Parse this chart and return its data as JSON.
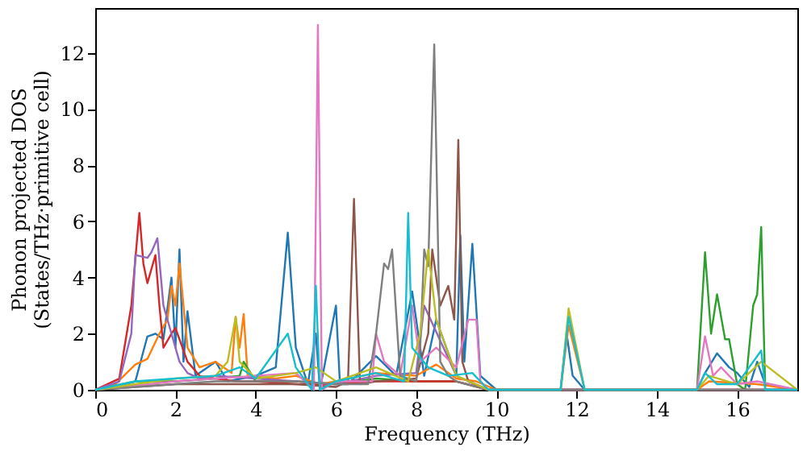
{
  "chart_data": {
    "type": "line",
    "xlabel": "Frequency (THz)",
    "ylabel": "Phonon projected DOS\n(States/THz·primitive cell)",
    "xlim": [
      0,
      17.5
    ],
    "ylim": [
      0,
      13.6
    ],
    "xticks": [
      0,
      2,
      4,
      6,
      8,
      10,
      12,
      14,
      16
    ],
    "yticks": [
      0,
      2,
      4,
      6,
      8,
      10,
      12
    ],
    "grid": false,
    "legend": false,
    "series": [
      {
        "color": "#1f77b4",
        "x": [
          0,
          0.5,
          1.0,
          1.3,
          1.5,
          1.7,
          1.9,
          2.0,
          2.1,
          2.2,
          2.3,
          2.5,
          3.0,
          3.3,
          4.0,
          4.5,
          4.8,
          5.0,
          5.3,
          5.5,
          5.6,
          6.0,
          6.1,
          6.3,
          7.0,
          7.5,
          7.9,
          8.2,
          8.5,
          9.0,
          9.1,
          9.2,
          9.4,
          9.6,
          10.0,
          11.6,
          11.75,
          11.9,
          12.2,
          15.0,
          15.2,
          15.5,
          15.8,
          16.0,
          16.3,
          16.5,
          16.7,
          17.5
        ],
        "values": [
          0,
          0.1,
          0.3,
          1.9,
          2.0,
          1.8,
          4.0,
          1.5,
          5.0,
          1.0,
          2.8,
          0.5,
          1.0,
          0.3,
          0.5,
          0.8,
          5.6,
          1.5,
          0.2,
          2.0,
          0.0,
          3.0,
          0.2,
          0.2,
          1.2,
          0.5,
          3.5,
          0.5,
          2.5,
          0.5,
          5.5,
          1.0,
          5.2,
          0.5,
          0,
          0,
          2.0,
          0.5,
          0,
          0,
          0.6,
          1.3,
          0.8,
          0.6,
          0.1,
          1.0,
          0.2,
          0
        ]
      },
      {
        "color": "#ff7f0e",
        "x": [
          0,
          0.5,
          1.0,
          1.3,
          1.6,
          1.8,
          1.9,
          2.0,
          2.1,
          2.3,
          2.6,
          3.0,
          3.4,
          3.5,
          3.6,
          3.7,
          3.8,
          4.5,
          5.0,
          5.6,
          6.0,
          7.0,
          8.0,
          8.5,
          9.0,
          9.5,
          10.0,
          11.6,
          11.8,
          12.2,
          15.0,
          15.3,
          16.5,
          17.5
        ],
        "values": [
          0,
          0.2,
          0.9,
          1.1,
          2.0,
          2.5,
          3.7,
          3.0,
          4.5,
          1.5,
          0.8,
          1.0,
          0.6,
          2.6,
          1.5,
          2.7,
          0.5,
          0.4,
          0.5,
          0.2,
          0.3,
          0.6,
          0.5,
          0.9,
          0.4,
          0.3,
          0,
          0,
          2.3,
          0,
          0,
          0.3,
          0.2,
          0
        ]
      },
      {
        "color": "#2ca02c",
        "x": [
          0,
          1.0,
          2.0,
          3.0,
          3.6,
          3.7,
          4.0,
          5.0,
          6.0,
          7.0,
          8.0,
          9.0,
          9.8,
          11.6,
          12.2,
          15.0,
          15.2,
          15.35,
          15.5,
          15.7,
          15.8,
          16.0,
          16.2,
          16.4,
          16.5,
          16.6,
          16.7,
          17.5
        ],
        "values": [
          0,
          0.3,
          0.3,
          0.4,
          0.5,
          1.0,
          0.3,
          0.3,
          0.2,
          0.4,
          0.3,
          0.3,
          0,
          0,
          0,
          0,
          4.9,
          2.0,
          3.4,
          1.8,
          1.8,
          0.2,
          0,
          3.0,
          3.4,
          5.8,
          0,
          0
        ]
      },
      {
        "color": "#d62728",
        "x": [
          0,
          0.6,
          0.9,
          1.1,
          1.2,
          1.3,
          1.5,
          1.6,
          1.7,
          1.9,
          2.0,
          2.3,
          2.6,
          3.0,
          3.5,
          4.0,
          5.0,
          6.0,
          7.0,
          8.0,
          9.0,
          9.8,
          17.5
        ],
        "values": [
          0,
          0.4,
          3.0,
          6.3,
          4.5,
          3.8,
          4.8,
          3.0,
          1.5,
          2.0,
          2.2,
          1.0,
          0.5,
          0.4,
          0.3,
          0.3,
          0.2,
          0.2,
          0.3,
          0.3,
          0.3,
          0,
          0
        ]
      },
      {
        "color": "#9467bd",
        "x": [
          0,
          0.6,
          0.9,
          1.0,
          1.3,
          1.4,
          1.55,
          1.7,
          1.9,
          2.1,
          2.3,
          2.6,
          3.0,
          4.0,
          5.0,
          6.0,
          7.0,
          8.0,
          8.2,
          9.0,
          9.8,
          17.5
        ],
        "values": [
          0,
          0.3,
          2.0,
          4.8,
          4.7,
          4.9,
          5.4,
          3.0,
          2.0,
          1.0,
          0.6,
          0.4,
          0.5,
          0.4,
          0.3,
          0.2,
          0.5,
          0.6,
          3.0,
          0.5,
          0,
          0
        ]
      },
      {
        "color": "#8c564b",
        "x": [
          0,
          2.0,
          4.0,
          5.0,
          6.0,
          6.3,
          6.45,
          6.6,
          7.0,
          8.0,
          8.3,
          8.4,
          8.6,
          8.8,
          8.95,
          9.05,
          9.15,
          9.3,
          9.8,
          17.5
        ],
        "values": [
          0,
          0.2,
          0.2,
          0.2,
          0.1,
          0.3,
          6.8,
          0.2,
          0.3,
          0.4,
          2.0,
          5.0,
          3.0,
          3.7,
          2.5,
          8.9,
          1.0,
          0.3,
          0,
          0
        ]
      },
      {
        "color": "#e377c2",
        "x": [
          0,
          2.0,
          4.0,
          5.0,
          5.45,
          5.55,
          5.65,
          6.0,
          6.9,
          7.0,
          7.2,
          7.6,
          7.9,
          8.1,
          8.5,
          9.0,
          9.3,
          9.5,
          9.6,
          9.8,
          11.6,
          12.2,
          15.0,
          15.2,
          15.4,
          15.6,
          16.0,
          16.5,
          17.5
        ],
        "values": [
          0,
          0.3,
          0.5,
          0.6,
          0,
          13.0,
          0,
          0.3,
          0.3,
          2.0,
          1.0,
          0.5,
          3.0,
          1.0,
          1.5,
          0.8,
          2.5,
          2.5,
          0.3,
          0,
          0,
          0,
          0,
          1.9,
          0.5,
          0.8,
          0.2,
          0.3,
          0
        ]
      },
      {
        "color": "#7f7f7f",
        "x": [
          0,
          3.0,
          5.0,
          6.0,
          6.8,
          7.0,
          7.2,
          7.3,
          7.4,
          7.6,
          8.0,
          8.1,
          8.2,
          8.3,
          8.45,
          8.6,
          8.8,
          9.0,
          9.8,
          17.5
        ],
        "values": [
          0,
          0.3,
          0.3,
          0.2,
          0.2,
          2.0,
          4.5,
          4.3,
          5.0,
          0.5,
          0.3,
          1.5,
          5.0,
          4.4,
          12.3,
          1.0,
          0.5,
          0.3,
          0,
          0
        ]
      },
      {
        "color": "#bcbd22",
        "x": [
          0,
          1.0,
          2.0,
          3.0,
          3.3,
          3.5,
          3.6,
          4.0,
          4.5,
          5.0,
          5.5,
          6.0,
          7.0,
          7.8,
          8.1,
          8.3,
          8.5,
          9.0,
          9.8,
          11.6,
          11.8,
          12.2,
          15.0,
          15.3,
          16.0,
          16.6,
          17.5
        ],
        "values": [
          0,
          0.2,
          0.4,
          0.5,
          1.0,
          2.6,
          1.0,
          0.4,
          0.5,
          0.6,
          0.8,
          0.3,
          0.8,
          0.3,
          2.0,
          5.0,
          2.5,
          0.5,
          0,
          0,
          2.9,
          0,
          0,
          0.5,
          0.2,
          1.0,
          0
        ]
      },
      {
        "color": "#17becf",
        "x": [
          0,
          1.0,
          2.0,
          3.0,
          3.6,
          4.0,
          4.8,
          5.0,
          5.4,
          5.5,
          5.6,
          6.0,
          7.0,
          7.7,
          7.8,
          7.9,
          8.3,
          8.8,
          9.4,
          9.8,
          11.6,
          11.8,
          12.2,
          15.0,
          15.2,
          15.5,
          16.0,
          16.3,
          16.6,
          16.7,
          17.5
        ],
        "values": [
          0,
          0.3,
          0.4,
          0.5,
          0.8,
          0.4,
          2.0,
          0.8,
          0,
          3.7,
          0,
          0.3,
          0.6,
          0.3,
          6.3,
          1.5,
          0.8,
          0.5,
          0.6,
          0,
          0,
          2.6,
          0,
          0,
          0.6,
          0.2,
          0.2,
          0.8,
          1.4,
          0,
          0
        ]
      }
    ]
  }
}
